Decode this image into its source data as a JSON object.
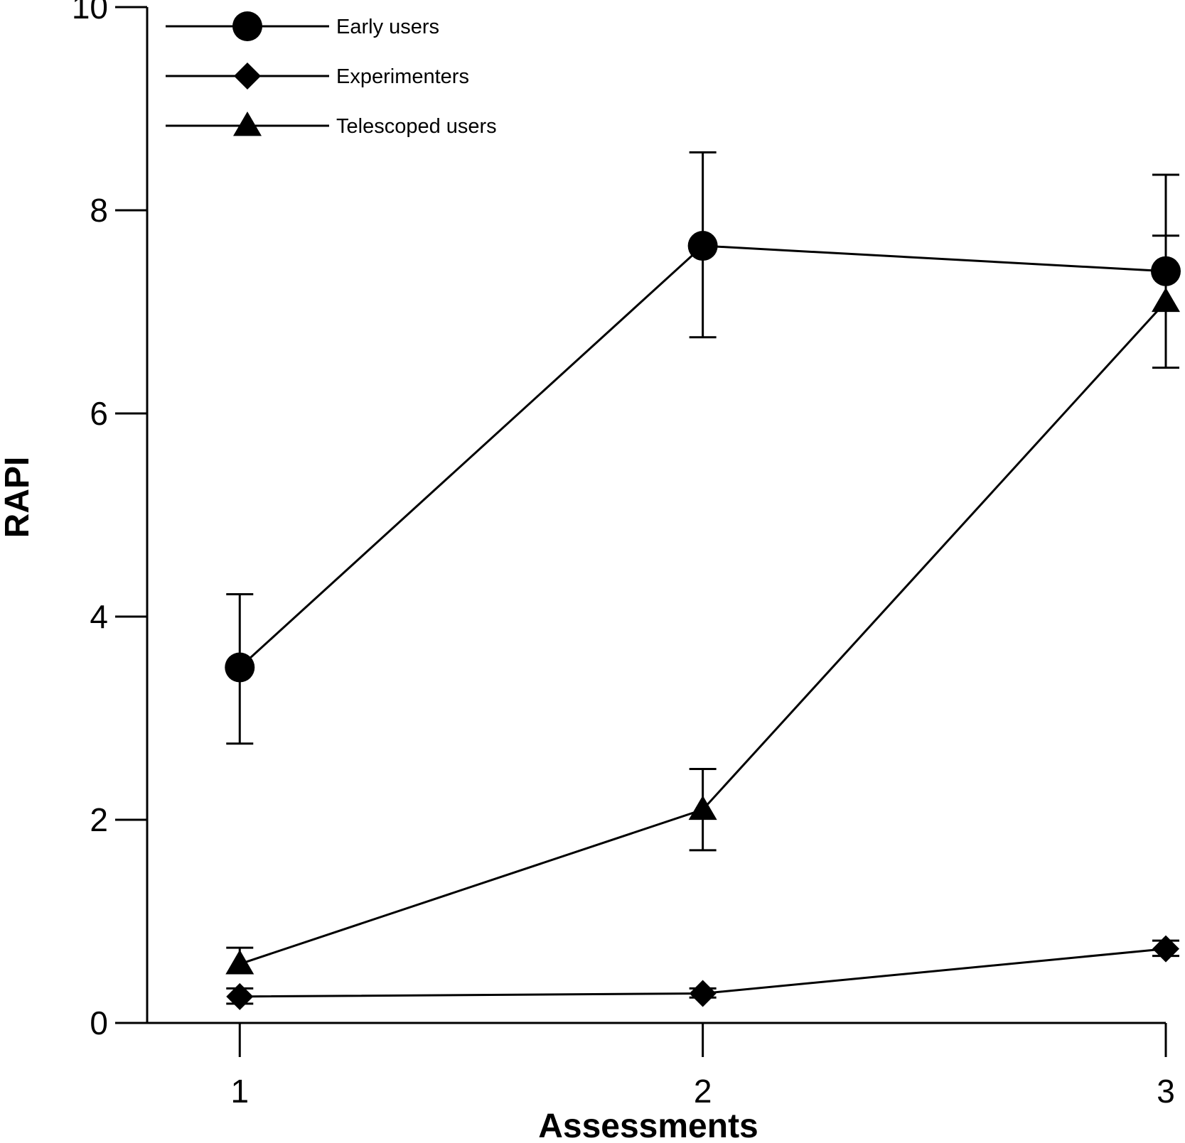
{
  "chart_data": {
    "type": "line",
    "xlabel": "Assessments",
    "ylabel": "RAPI",
    "x": [
      1,
      2,
      3
    ],
    "xticks": [
      "1",
      "2",
      "3"
    ],
    "xlim": [
      0.8,
      3.0
    ],
    "ylim": [
      0,
      10
    ],
    "yticks": [
      "0",
      "2",
      "4",
      "6",
      "8",
      "10"
    ],
    "grid": false,
    "legend_position": "top-left",
    "series": [
      {
        "name": "Early users",
        "marker": "circle",
        "values": [
          3.5,
          7.65,
          7.4
        ],
        "error_upper": [
          4.22,
          8.57,
          8.35
        ],
        "error_lower": [
          2.75,
          6.75,
          null
        ]
      },
      {
        "name": "Experimenters",
        "marker": "diamond",
        "values": [
          0.26,
          0.29,
          0.73
        ],
        "error_upper": [
          0.34,
          0.34,
          0.81
        ],
        "error_lower": [
          0.19,
          0.25,
          0.66
        ]
      },
      {
        "name": "Telescoped users",
        "marker": "triangle",
        "values": [
          0.58,
          2.1,
          7.1
        ],
        "error_upper": [
          0.74,
          2.5,
          7.75
        ],
        "error_lower": null
      },
      {
        "name": "",
        "marker": "none",
        "values": [
          null,
          null,
          null
        ],
        "error_upper": [
          null,
          1.7,
          6.45
        ],
        "error_lower": null
      }
    ]
  }
}
